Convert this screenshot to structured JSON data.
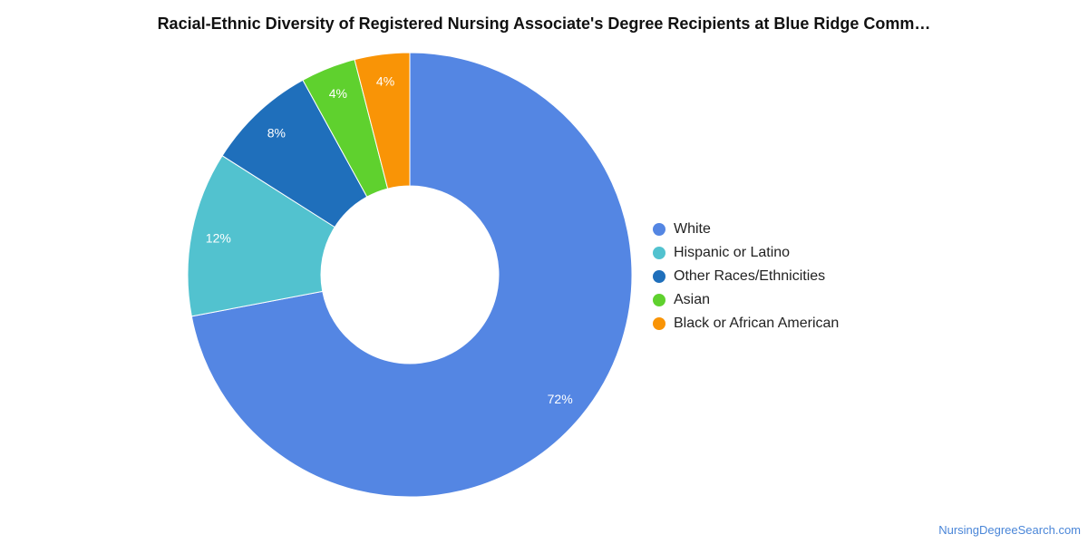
{
  "chart_data": {
    "type": "pie",
    "title": "Racial-Ethnic Diversity of Registered Nursing Associate's Degree Recipients at Blue Ridge Comm…",
    "donut": true,
    "legend_position": "right",
    "slices": [
      {
        "label": "White",
        "value": 72,
        "display": "72%",
        "color": "#5486e3"
      },
      {
        "label": "Hispanic or Latino",
        "value": 12,
        "display": "12%",
        "color": "#52c2cf"
      },
      {
        "label": "Other Races/Ethnicities",
        "value": 8,
        "display": "8%",
        "color": "#1f6fbb"
      },
      {
        "label": "Asian",
        "value": 4,
        "display": "4%",
        "color": "#5fd12e"
      },
      {
        "label": "Black or African American",
        "value": 4,
        "display": "4%",
        "color": "#f99406"
      }
    ]
  },
  "footer": {
    "credit": "NursingDegreeSearch.com"
  }
}
